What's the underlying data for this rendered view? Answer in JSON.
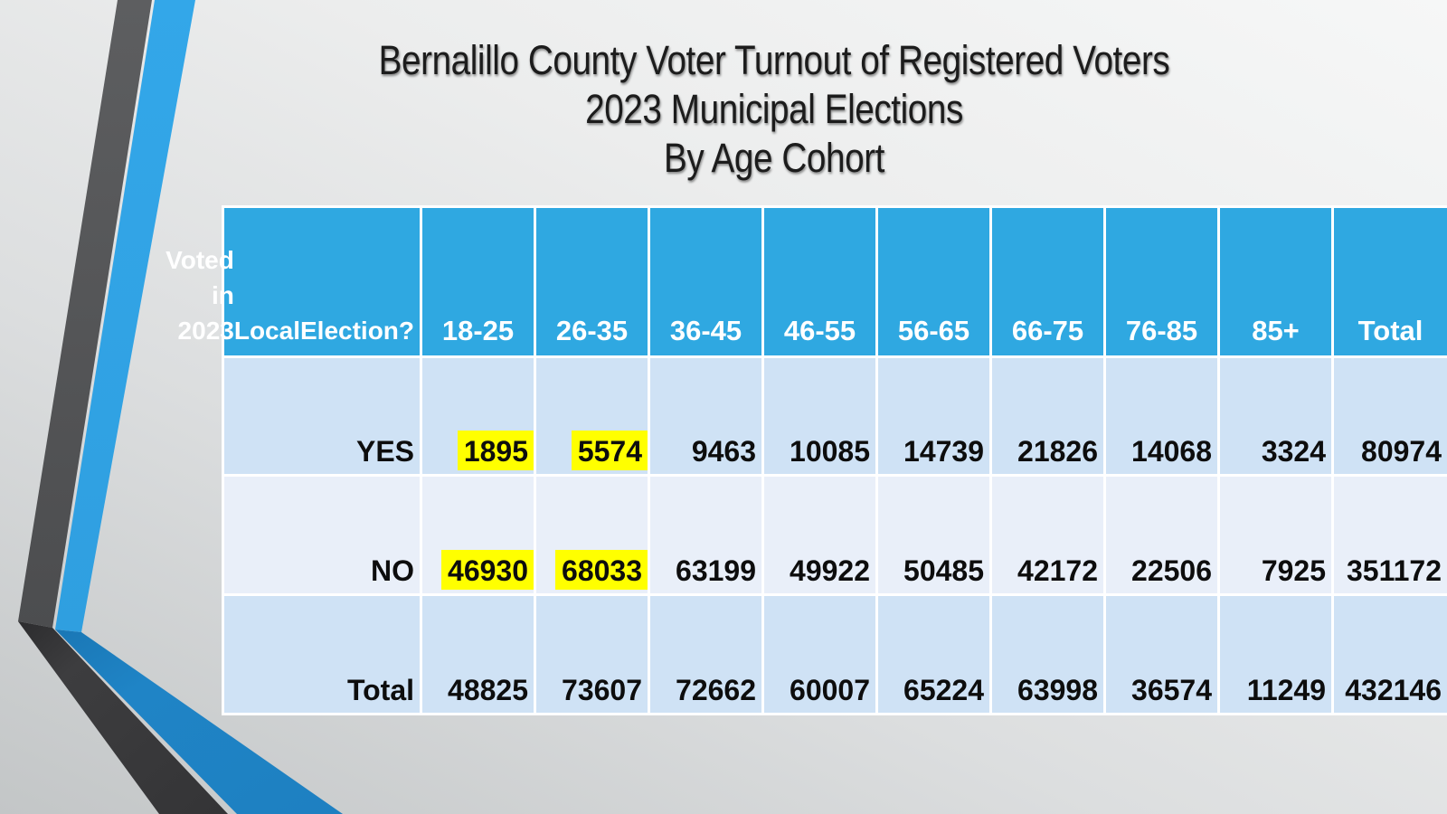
{
  "slide": {
    "title_lines": [
      "Bernalillo County Voter Turnout of Registered Voters",
      "2023 Municipal Elections",
      "By Age Cohort"
    ]
  },
  "chart_data": {
    "type": "table",
    "title": "Bernalillo County Voter Turnout of Registered Voters, 2023 Municipal Elections, By Age Cohort",
    "corner_header": "Voted in 2023 Local Election?",
    "corner_header_lines": [
      "Voted in 2023",
      "Local",
      "Election?"
    ],
    "columns": [
      "18-25",
      "26-35",
      "36-45",
      "46-55",
      "56-65",
      "66-75",
      "76-85",
      "85+",
      "Total"
    ],
    "rows": [
      {
        "label": "YES",
        "values": [
          "1895",
          "5574",
          "9463",
          "10085",
          "14739",
          "21826",
          "14068",
          "3324",
          "80974"
        ],
        "highlighted": [
          0,
          1
        ]
      },
      {
        "label": "NO",
        "values": [
          "46930",
          "68033",
          "63199",
          "49922",
          "50485",
          "42172",
          "22506",
          "7925",
          "351172"
        ],
        "highlighted": [
          0,
          1
        ]
      },
      {
        "label": "Total",
        "values": [
          "48825",
          "73607",
          "72662",
          "60007",
          "65224",
          "63998",
          "36574",
          "11249",
          "432146"
        ],
        "highlighted": []
      }
    ],
    "layout_hints": {
      "header_row_at_bottom_aligned": true,
      "value_alignment": "right",
      "row_band_pattern": [
        "light",
        "lighter",
        "light"
      ]
    }
  },
  "colors": {
    "header_bg": "#2fa8e1",
    "row_light": "#cfe2f5",
    "row_lighter": "#e9eff9",
    "grid_line": "#ffffff",
    "highlight": "#ffff00",
    "text": "#0d0d0d",
    "header_text": "#ffffff",
    "ribbon_gray_upper": "#57585a",
    "ribbon_gray_lower": "#39393b",
    "ribbon_blue_upper": "#2fa3e6",
    "ribbon_blue_lower": "#1e81c2"
  }
}
